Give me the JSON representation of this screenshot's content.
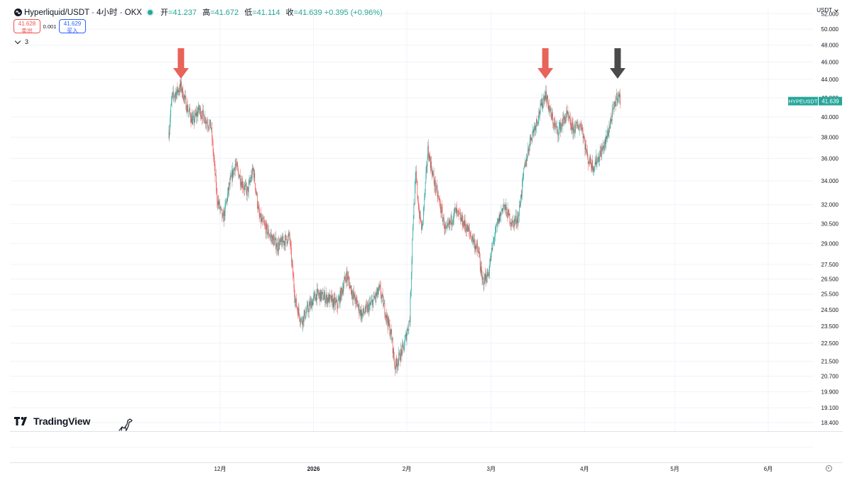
{
  "header": {
    "symbol_title": "Hyperliquid/USDT · 4小时 · OKX",
    "ohlc": [
      {
        "label": "开",
        "value": "=41.237"
      },
      {
        "label": "高",
        "value": "=41.672"
      },
      {
        "label": "低",
        "value": "=41.114"
      },
      {
        "label": "收",
        "value": "=41.639 +0.395 (+0.96%)"
      }
    ]
  },
  "trade": {
    "sell_price": "41.628",
    "sell_label": "卖出",
    "spread": "0.001",
    "buy_price": "41.629",
    "buy_label": "买入"
  },
  "indicator_count": "3",
  "currency": "USDT",
  "brand": "TradingView",
  "colors": {
    "up": "#26a69a",
    "down": "#ef5350",
    "arrow_red": "#e8635a",
    "arrow_dark": "#4a4a4a",
    "grid": "#f0f3fa"
  },
  "chart_data": {
    "type": "candlestick",
    "title": "Hyperliquid/USDT · 4小时 · OKX",
    "y_scale": "log",
    "ylim": [
      18.0,
      52.5
    ],
    "y_ticks": [
      "52.000",
      "50.000",
      "48.000",
      "46.000",
      "44.000",
      "42.000",
      "40.000",
      "38.000",
      "36.000",
      "34.000",
      "32.000",
      "30.500",
      "29.000",
      "27.500",
      "26.500",
      "25.500",
      "24.500",
      "23.500",
      "22.500",
      "21.500",
      "20.700",
      "19.900",
      "19.100",
      "18.400"
    ],
    "x_ticks": [
      {
        "label": "12月",
        "date": "2025-12-01"
      },
      {
        "label": "2026",
        "date": "2026-01-01"
      },
      {
        "label": "2月",
        "date": "2026-02-01"
      },
      {
        "label": "3月",
        "date": "2026-03-01"
      },
      {
        "label": "4月",
        "date": "2026-04-01"
      },
      {
        "label": "5月",
        "date": "2026-05-01"
      },
      {
        "label": "6月",
        "date": "2026-06-01"
      }
    ],
    "price_path": [
      [
        "2025-11-14",
        38.5
      ],
      [
        "2025-11-15",
        42.0
      ],
      [
        "2025-11-18",
        43.2
      ],
      [
        "2025-11-20",
        41.0
      ],
      [
        "2025-11-22",
        39.5
      ],
      [
        "2025-11-24",
        40.8
      ],
      [
        "2025-11-26",
        39.8
      ],
      [
        "2025-11-28",
        39.0
      ],
      [
        "2025-11-30",
        32.5
      ],
      [
        "2025-12-02",
        30.8
      ],
      [
        "2025-12-04",
        33.5
      ],
      [
        "2025-12-06",
        35.5
      ],
      [
        "2025-12-08",
        34.0
      ],
      [
        "2025-12-10",
        33.0
      ],
      [
        "2025-12-12",
        35.0
      ],
      [
        "2025-12-14",
        31.0
      ],
      [
        "2025-12-17",
        29.8
      ],
      [
        "2025-12-20",
        28.8
      ],
      [
        "2025-12-24",
        29.5
      ],
      [
        "2025-12-26",
        25.0
      ],
      [
        "2025-12-28",
        23.8
      ],
      [
        "2025-12-30",
        24.5
      ],
      [
        "2026-01-02",
        25.5
      ],
      [
        "2026-01-06",
        25.2
      ],
      [
        "2026-01-09",
        24.8
      ],
      [
        "2026-01-12",
        26.8
      ],
      [
        "2026-01-14",
        25.5
      ],
      [
        "2026-01-17",
        24.2
      ],
      [
        "2026-01-20",
        24.8
      ],
      [
        "2026-01-23",
        25.8
      ],
      [
        "2026-01-25",
        24.3
      ],
      [
        "2026-01-27",
        22.8
      ],
      [
        "2026-01-28",
        21.2
      ],
      [
        "2026-01-31",
        22.3
      ],
      [
        "2026-02-02",
        24.0
      ],
      [
        "2026-02-03",
        30.5
      ],
      [
        "2026-02-04",
        34.5
      ],
      [
        "2026-02-05",
        31.5
      ],
      [
        "2026-02-06",
        30.0
      ],
      [
        "2026-02-07",
        33.0
      ],
      [
        "2026-02-08",
        36.8
      ],
      [
        "2026-02-10",
        34.0
      ],
      [
        "2026-02-12",
        32.0
      ],
      [
        "2026-02-14",
        29.8
      ],
      [
        "2026-02-17",
        31.5
      ],
      [
        "2026-02-20",
        30.5
      ],
      [
        "2026-02-23",
        29.3
      ],
      [
        "2026-02-25",
        28.2
      ],
      [
        "2026-02-26",
        26.3
      ],
      [
        "2026-02-28",
        26.8
      ],
      [
        "2026-03-02",
        29.5
      ],
      [
        "2026-03-05",
        32.0
      ],
      [
        "2026-03-08",
        30.5
      ],
      [
        "2026-03-10",
        31.0
      ],
      [
        "2026-03-12",
        35.0
      ],
      [
        "2026-03-14",
        37.8
      ],
      [
        "2026-03-16",
        39.5
      ],
      [
        "2026-03-19",
        42.5
      ],
      [
        "2026-03-21",
        40.0
      ],
      [
        "2026-03-23",
        38.5
      ],
      [
        "2026-03-26",
        40.2
      ],
      [
        "2026-03-28",
        38.8
      ],
      [
        "2026-03-31",
        39.2
      ],
      [
        "2026-04-02",
        36.0
      ],
      [
        "2026-04-04",
        35.3
      ],
      [
        "2026-04-06",
        36.3
      ],
      [
        "2026-04-08",
        37.5
      ],
      [
        "2026-04-10",
        40.0
      ],
      [
        "2026-04-12",
        42.4
      ],
      [
        "2026-04-13",
        41.639
      ]
    ],
    "annotations": [
      {
        "type": "arrow-down",
        "color": "#e8635a",
        "date": "2025-11-18"
      },
      {
        "type": "arrow-down",
        "color": "#e8635a",
        "date": "2026-03-19"
      },
      {
        "type": "arrow-down",
        "color": "#4a4a4a",
        "date": "2026-04-12"
      }
    ],
    "last_price": {
      "label": "HYPEUSDT",
      "value": "41.639",
      "date": "2026-04-13"
    },
    "grid": true,
    "legend": "top-left"
  }
}
